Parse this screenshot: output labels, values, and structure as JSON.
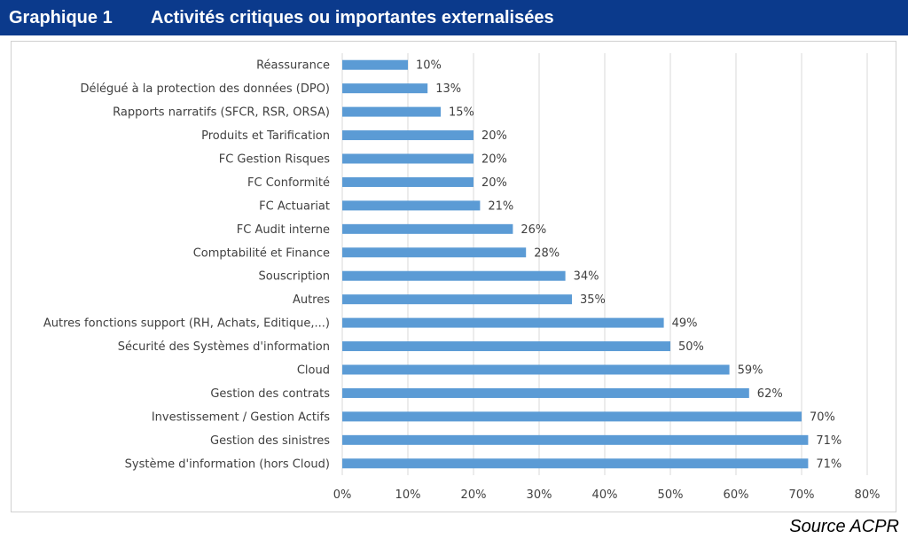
{
  "header": {
    "number": "Graphique 1",
    "title": "Activités critiques ou importantes externalisées"
  },
  "source": "Source ACPR",
  "colors": {
    "header_bg": "#0b3a8c",
    "bar": "#5b9bd5",
    "grid": "#d9d9d9"
  },
  "chart_data": {
    "type": "bar",
    "orientation": "horizontal",
    "categories": [
      "Réassurance",
      "Délégué à la protection des données (DPO)",
      "Rapports narratifs (SFCR, RSR, ORSA)",
      "Produits et Tarification",
      "FC Gestion Risques",
      "FC Conformité",
      "FC Actuariat",
      "FC Audit interne",
      "Comptabilité et Finance",
      "Souscription",
      "Autres",
      "Autres fonctions support (RH, Achats, Editique,...)",
      "Sécurité des Systèmes d'information",
      "Cloud",
      "Gestion des contrats",
      "Investissement / Gestion Actifs",
      "Gestion des sinistres",
      "Système d'information (hors Cloud)"
    ],
    "values": [
      10,
      13,
      15,
      20,
      20,
      20,
      21,
      26,
      28,
      34,
      35,
      49,
      50,
      59,
      62,
      70,
      71,
      71
    ],
    "value_labels": [
      "10%",
      "13%",
      "15%",
      "20%",
      "20%",
      "20%",
      "21%",
      "26%",
      "28%",
      "34%",
      "35%",
      "49%",
      "50%",
      "59%",
      "62%",
      "70%",
      "71%",
      "71%"
    ],
    "xlim": [
      0,
      80
    ],
    "x_ticks": [
      "0%",
      "10%",
      "20%",
      "30%",
      "40%",
      "50%",
      "60%",
      "70%",
      "80%"
    ],
    "grid": true,
    "legend": "none"
  }
}
